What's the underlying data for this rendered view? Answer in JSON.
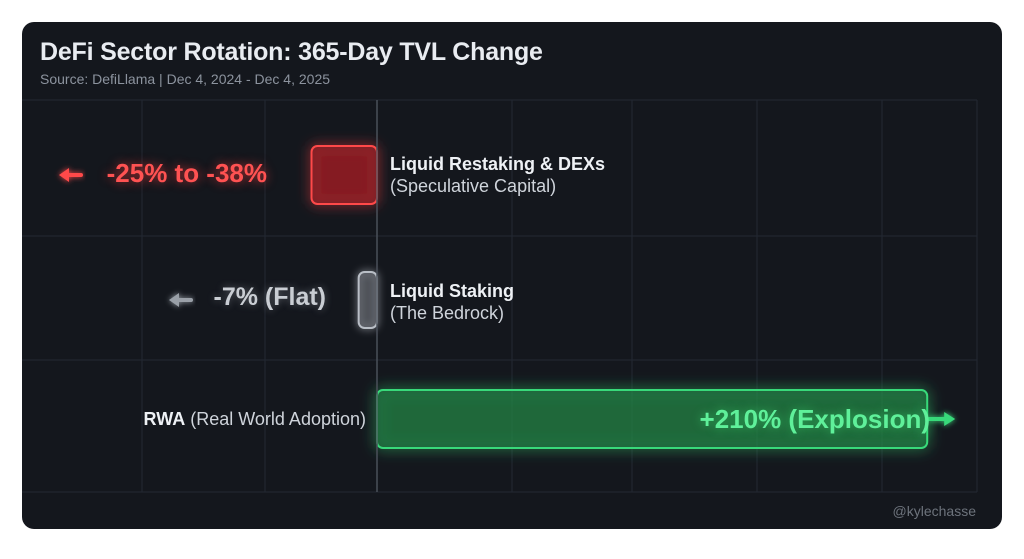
{
  "title": "DeFi Sector Rotation: 365-Day TVL Change",
  "subtitle": "Source: DefiLlama | Dec 4, 2024 - Dec 4, 2025",
  "watermark": "@kylechasse",
  "colors": {
    "background": "#14171d",
    "negative": "#ff4a4a",
    "flat": "#9aa0a8",
    "positive": "#39d97a",
    "grid": "#232832"
  },
  "chart_data": {
    "type": "bar",
    "orientation": "horizontal",
    "grid": true,
    "categories": [
      "Liquid Restaking & DEXs (Speculative Capital)",
      "Liquid Staking (The Bedrock)",
      "RWA (Real World Adoption)"
    ],
    "bars": [
      {
        "name": "Liquid Restaking & DEXs",
        "note": "(Speculative Capital)",
        "value": -25,
        "value_range": [
          -25,
          -38
        ],
        "label": "-25% to -38%",
        "color": "#ff4a4a",
        "arrow": "left"
      },
      {
        "name": "Liquid Staking",
        "note": "(The Bedrock)",
        "value": -7,
        "label": "-7% (Flat)",
        "color": "#9aa0a8",
        "arrow": "left"
      },
      {
        "name": "RWA",
        "note": "(Real World Adoption)",
        "value": 210,
        "label": "+210% (Explosion)",
        "color": "#39d97a",
        "arrow": "right"
      }
    ]
  }
}
